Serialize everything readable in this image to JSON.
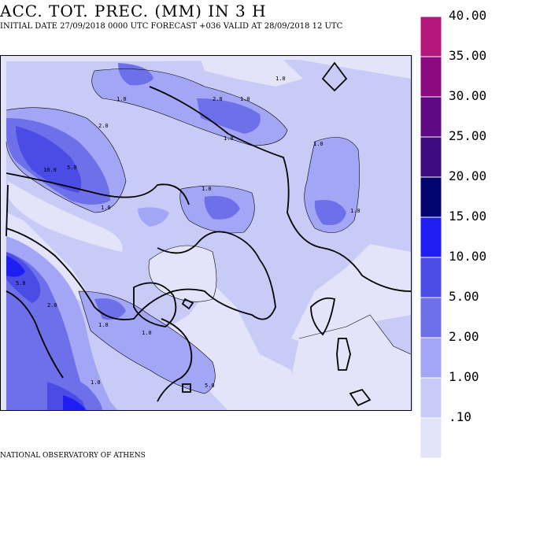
{
  "header": {
    "title": "ACC. TOT. PREC. (MM) IN 3 H",
    "subtitle": "INITIAL DATE 27/09/2018   0000 UTC  FORECAST +036 VALID AT  28/09/2018  12 UTC"
  },
  "legend": {
    "levels": [
      {
        "label": "40.00",
        "color": "#b3167d"
      },
      {
        "label": "35.00",
        "color": "#8b0a82"
      },
      {
        "label": "30.00",
        "color": "#5e0a84"
      },
      {
        "label": "25.00",
        "color": "#3d0a7f"
      },
      {
        "label": "20.00",
        "color": "#040470"
      },
      {
        "label": "15.00",
        "color": "#1e1ef2"
      },
      {
        "label": "10.00",
        "color": "#4b4ce6"
      },
      {
        "label": "5.00",
        "color": "#6e70ea"
      },
      {
        "label": "2.00",
        "color": "#a3a6f5"
      },
      {
        "label": "1.00",
        "color": "#c9cbf7"
      },
      {
        "label": ".10",
        "color": "#e3e3f9"
      }
    ]
  },
  "map": {
    "background_color": "#e3e3f9",
    "contour_labels": [
      "1.0",
      "2.0",
      "5.0",
      "10.0"
    ]
  },
  "footer": {
    "credit": "NATIONAL OBSERVATORY OF ATHENS"
  }
}
